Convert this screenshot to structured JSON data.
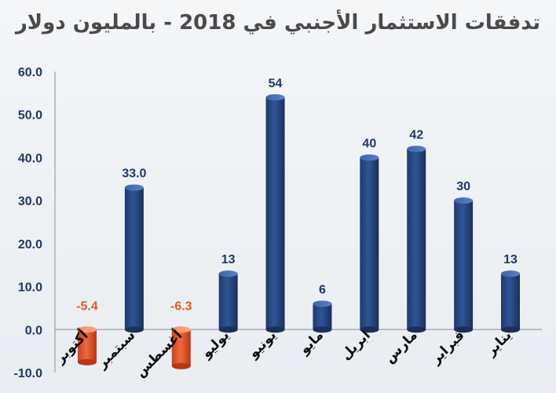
{
  "chart_data": {
    "type": "bar",
    "title": "تدفقات الاستثمار الأجنبي في 2018 - بالمليون دولار",
    "xlabel": "",
    "ylabel": "",
    "ylim": [
      -10,
      60
    ],
    "yticks": [
      60,
      50,
      40,
      30,
      20,
      10,
      0,
      -10
    ],
    "ytick_labels": [
      "60.0",
      "50.0",
      "40.0",
      "30.0",
      "20.0",
      "10.0",
      "0.0",
      "-10.0"
    ],
    "grid": false,
    "legend": "none",
    "categories": [
      "يناير",
      "فبراير",
      "مارس",
      "ابريل",
      "مايو",
      "يونيو",
      "يوليو",
      "أغسطس",
      "سبتمبر",
      "أكتوبر"
    ],
    "values": [
      13,
      30,
      42,
      40,
      6,
      54,
      13,
      -6.3,
      33.0,
      -5.4
    ],
    "data_labels": [
      "13",
      "30",
      "42",
      "40",
      "6",
      "54",
      "13",
      "-6.3",
      "33.0",
      "-5.4"
    ],
    "colors": {
      "positive": "#2e4f8e",
      "negative": "#e4572e",
      "tick_text": "#203864",
      "axis_line": "#9aa0a6"
    }
  }
}
